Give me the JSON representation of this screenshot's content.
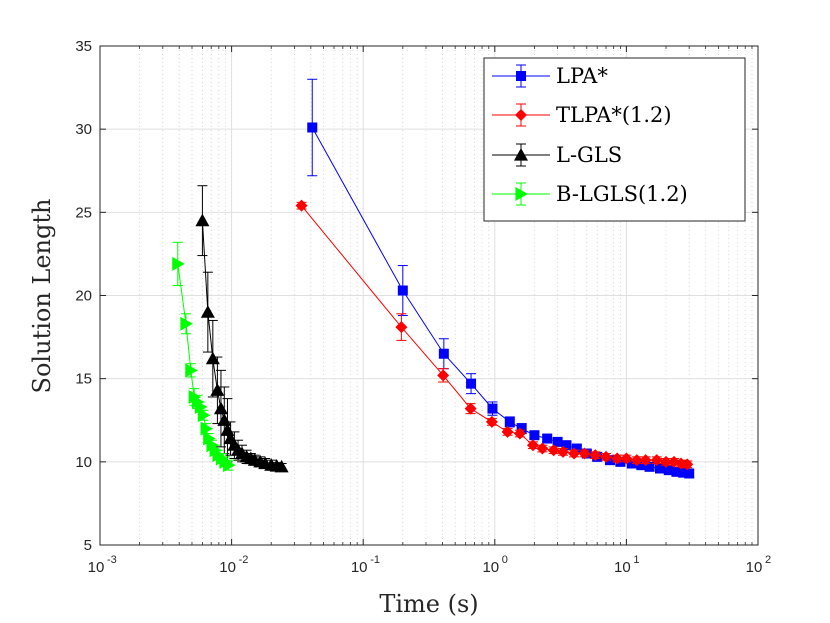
{
  "chart_data": {
    "type": "line",
    "title": "",
    "xlabel": "Time (s)",
    "ylabel": "Solution Length",
    "xscale": "log",
    "xlim": [
      0.001,
      100
    ],
    "ylim": [
      5,
      35
    ],
    "grid": true,
    "legend_position": "top-right",
    "x_ticks": [
      {
        "base": "10",
        "exp": "-3",
        "value": 0.001
      },
      {
        "base": "10",
        "exp": "-2",
        "value": 0.01
      },
      {
        "base": "10",
        "exp": "-1",
        "value": 0.1
      },
      {
        "base": "10",
        "exp": "0",
        "value": 1
      },
      {
        "base": "10",
        "exp": "1",
        "value": 10
      },
      {
        "base": "10",
        "exp": "2",
        "value": 100
      }
    ],
    "y_ticks": [
      5,
      10,
      15,
      20,
      25,
      30,
      35
    ],
    "series": [
      {
        "name": "LPA*",
        "color": "#0000ff",
        "marker": "square",
        "x": [
          0.041,
          0.2,
          0.41,
          0.66,
          0.96,
          1.3,
          1.6,
          2.0,
          2.5,
          3.0,
          3.5,
          4.2,
          5.0,
          6.0,
          7.5,
          9.0,
          11,
          13,
          15,
          18,
          21,
          24,
          27,
          30
        ],
        "y": [
          30.1,
          20.3,
          16.5,
          14.7,
          13.2,
          12.4,
          12.0,
          11.6,
          11.4,
          11.2,
          11.0,
          10.8,
          10.5,
          10.3,
          10.1,
          10.0,
          9.9,
          9.8,
          9.7,
          9.6,
          9.5,
          9.4,
          9.35,
          9.3
        ],
        "err": [
          2.9,
          1.5,
          0.9,
          0.6,
          0.4,
          0.3,
          0.3,
          0.2,
          0.2,
          0.2,
          0.2,
          0.2,
          0.2,
          0.2,
          0.2,
          0.2,
          0.2,
          0.2,
          0.2,
          0.2,
          0.2,
          0.2,
          0.2,
          0.2
        ]
      },
      {
        "name": "TLPA*(1.2)",
        "color": "#ff0000",
        "marker": "diamond",
        "x": [
          0.034,
          0.195,
          0.405,
          0.655,
          0.95,
          1.25,
          1.55,
          1.95,
          2.3,
          2.8,
          3.3,
          4.0,
          4.8,
          5.8,
          7.0,
          8.5,
          10,
          12,
          14,
          17,
          20,
          23,
          26,
          29
        ],
        "y": [
          25.4,
          18.1,
          15.2,
          13.2,
          12.4,
          11.8,
          11.7,
          11.0,
          10.8,
          10.7,
          10.6,
          10.5,
          10.5,
          10.4,
          10.3,
          10.2,
          10.2,
          10.1,
          10.1,
          10.1,
          10.0,
          10.0,
          9.9,
          9.85
        ],
        "err": [
          0.2,
          0.8,
          0.4,
          0.3,
          0.2,
          0.2,
          0.2,
          0.2,
          0.2,
          0.2,
          0.2,
          0.2,
          0.2,
          0.2,
          0.2,
          0.2,
          0.2,
          0.2,
          0.2,
          0.2,
          0.2,
          0.2,
          0.2,
          0.2
        ]
      },
      {
        "name": "L-GLS",
        "color": "#000000",
        "marker": "triangle-up",
        "x": [
          0.006,
          0.0066,
          0.0072,
          0.0078,
          0.0083,
          0.0088,
          0.0093,
          0.0098,
          0.0105,
          0.0112,
          0.012,
          0.013,
          0.014,
          0.015,
          0.0165,
          0.018,
          0.02,
          0.022,
          0.024
        ],
        "y": [
          24.5,
          19.0,
          16.2,
          14.3,
          13.2,
          12.5,
          11.9,
          11.4,
          11.0,
          10.7,
          10.5,
          10.3,
          10.2,
          10.1,
          10.0,
          9.9,
          9.8,
          9.75,
          9.7
        ],
        "err": [
          2.1,
          2.4,
          2.3,
          2.0,
          2.3,
          2.0,
          1.9,
          1.0,
          0.8,
          0.6,
          0.5,
          0.4,
          0.3,
          0.3,
          0.3,
          0.3,
          0.3,
          0.2,
          0.2
        ]
      },
      {
        "name": "B-LGLS(1.2)",
        "color": "#00ff00",
        "marker": "triangle-right",
        "x": [
          0.0039,
          0.0045,
          0.0049,
          0.0052,
          0.0055,
          0.0058,
          0.0061,
          0.0064,
          0.0067,
          0.0071,
          0.0075,
          0.0079,
          0.0084,
          0.0089,
          0.0095
        ],
        "y": [
          21.9,
          18.3,
          15.5,
          13.9,
          13.6,
          13.3,
          12.8,
          12.0,
          11.4,
          11.0,
          10.7,
          10.4,
          10.2,
          10.0,
          9.8
        ],
        "err": [
          1.3,
          0.6,
          0.4,
          0.5,
          0.4,
          0.3,
          0.3,
          0.3,
          0.3,
          0.3,
          0.3,
          0.3,
          0.3,
          0.3,
          0.3
        ]
      }
    ]
  }
}
